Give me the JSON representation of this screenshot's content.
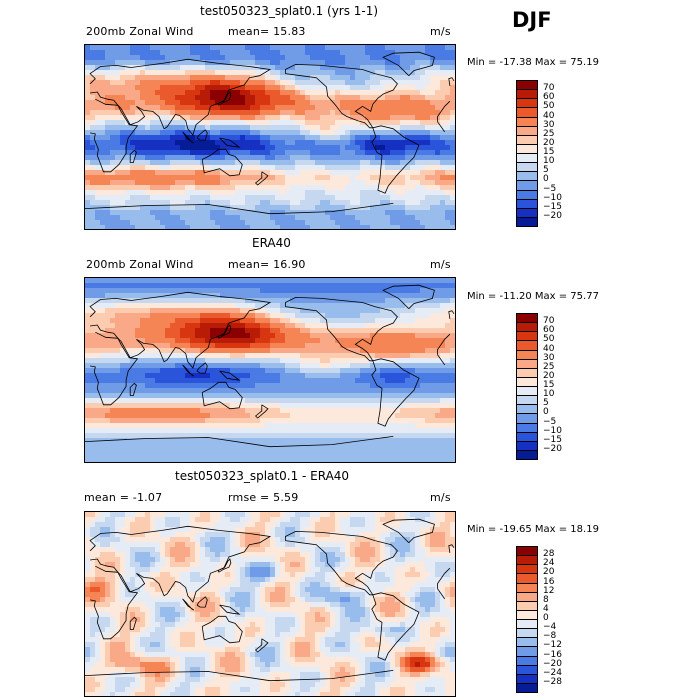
{
  "season": "DJF",
  "chart_data": [
    {
      "type": "heatmap",
      "title": "test050323_splat0.1 (yrs 1-1)",
      "subtitle_left": "200mb Zonal Wind",
      "stat1": "mean=  15.83",
      "stat2": "",
      "units": "m/s",
      "minmax": "Min = -17.38 Max =  75.19",
      "min": -17.38,
      "max": 75.19,
      "levels": [
        "70",
        "60",
        "50",
        "40",
        "30",
        "25",
        "20",
        "15",
        "10",
        "5",
        "0",
        "−5",
        "−10",
        "−15",
        "−20"
      ],
      "colors": [
        "#8b0000",
        "#b81c07",
        "#d73610",
        "#ea5a2d",
        "#f58555",
        "#f9a988",
        "#fcccb0",
        "#fde9dc",
        "#e6ecf6",
        "#c6d8f0",
        "#98bcec",
        "#6f9be7",
        "#4a7be4",
        "#2a55db",
        "#1631c1",
        "#061c96"
      ],
      "fields": {
        "north_jet": {
          "lat": 32,
          "lat_width": 13,
          "amp": 60,
          "east_asia_max": 75
        },
        "tropical_easterlies": {
          "lat": -7,
          "amp": -17
        },
        "south_jet": {
          "lat": -40,
          "amp": 35
        }
      }
    },
    {
      "type": "heatmap",
      "title": "ERA40",
      "subtitle_left": "200mb Zonal Wind",
      "stat1": "mean=  16.90",
      "stat2": "",
      "units": "m/s",
      "minmax": "Min = -11.20 Max =  75.77",
      "min": -11.2,
      "max": 75.77,
      "levels": [
        "70",
        "60",
        "50",
        "40",
        "30",
        "25",
        "20",
        "15",
        "10",
        "5",
        "0",
        "−5",
        "−10",
        "−15",
        "−20"
      ],
      "colors": [
        "#8b0000",
        "#b81c07",
        "#d73610",
        "#ea5a2d",
        "#f58555",
        "#f9a988",
        "#fcccb0",
        "#fde9dc",
        "#e6ecf6",
        "#c6d8f0",
        "#98bcec",
        "#6f9be7",
        "#4a7be4",
        "#2a55db",
        "#1631c1",
        "#061c96"
      ],
      "fields": {
        "north_jet": {
          "lat": 30,
          "lat_width": 13,
          "amp": 60,
          "east_asia_max": 76
        },
        "tropical_easterlies": {
          "lat": -5,
          "amp": -11
        },
        "south_jet": {
          "lat": -42,
          "amp": 33
        }
      }
    },
    {
      "type": "heatmap",
      "title": "test050323_splat0.1 - ERA40",
      "subtitle_left": "mean =  -1.07",
      "stat1": "",
      "stat2": "rmse =   5.59",
      "units": "m/s",
      "minmax": "Min = -19.65 Max =  18.19",
      "min": -19.65,
      "max": 18.19,
      "levels": [
        "28",
        "24",
        "20",
        "16",
        "12",
        "8",
        "4",
        "0",
        "−4",
        "−8",
        "−12",
        "−16",
        "−20",
        "−24",
        "−28"
      ],
      "colors": [
        "#8b0000",
        "#b81c07",
        "#d73610",
        "#ea5a2d",
        "#f58555",
        "#f9a988",
        "#fcccb0",
        "#fde9dc",
        "#e6ecf6",
        "#c6d8f0",
        "#98bcec",
        "#6f9be7",
        "#4a7be4",
        "#2a55db",
        "#1631c1",
        "#061c96"
      ],
      "fields": {
        "difference": true
      }
    }
  ]
}
